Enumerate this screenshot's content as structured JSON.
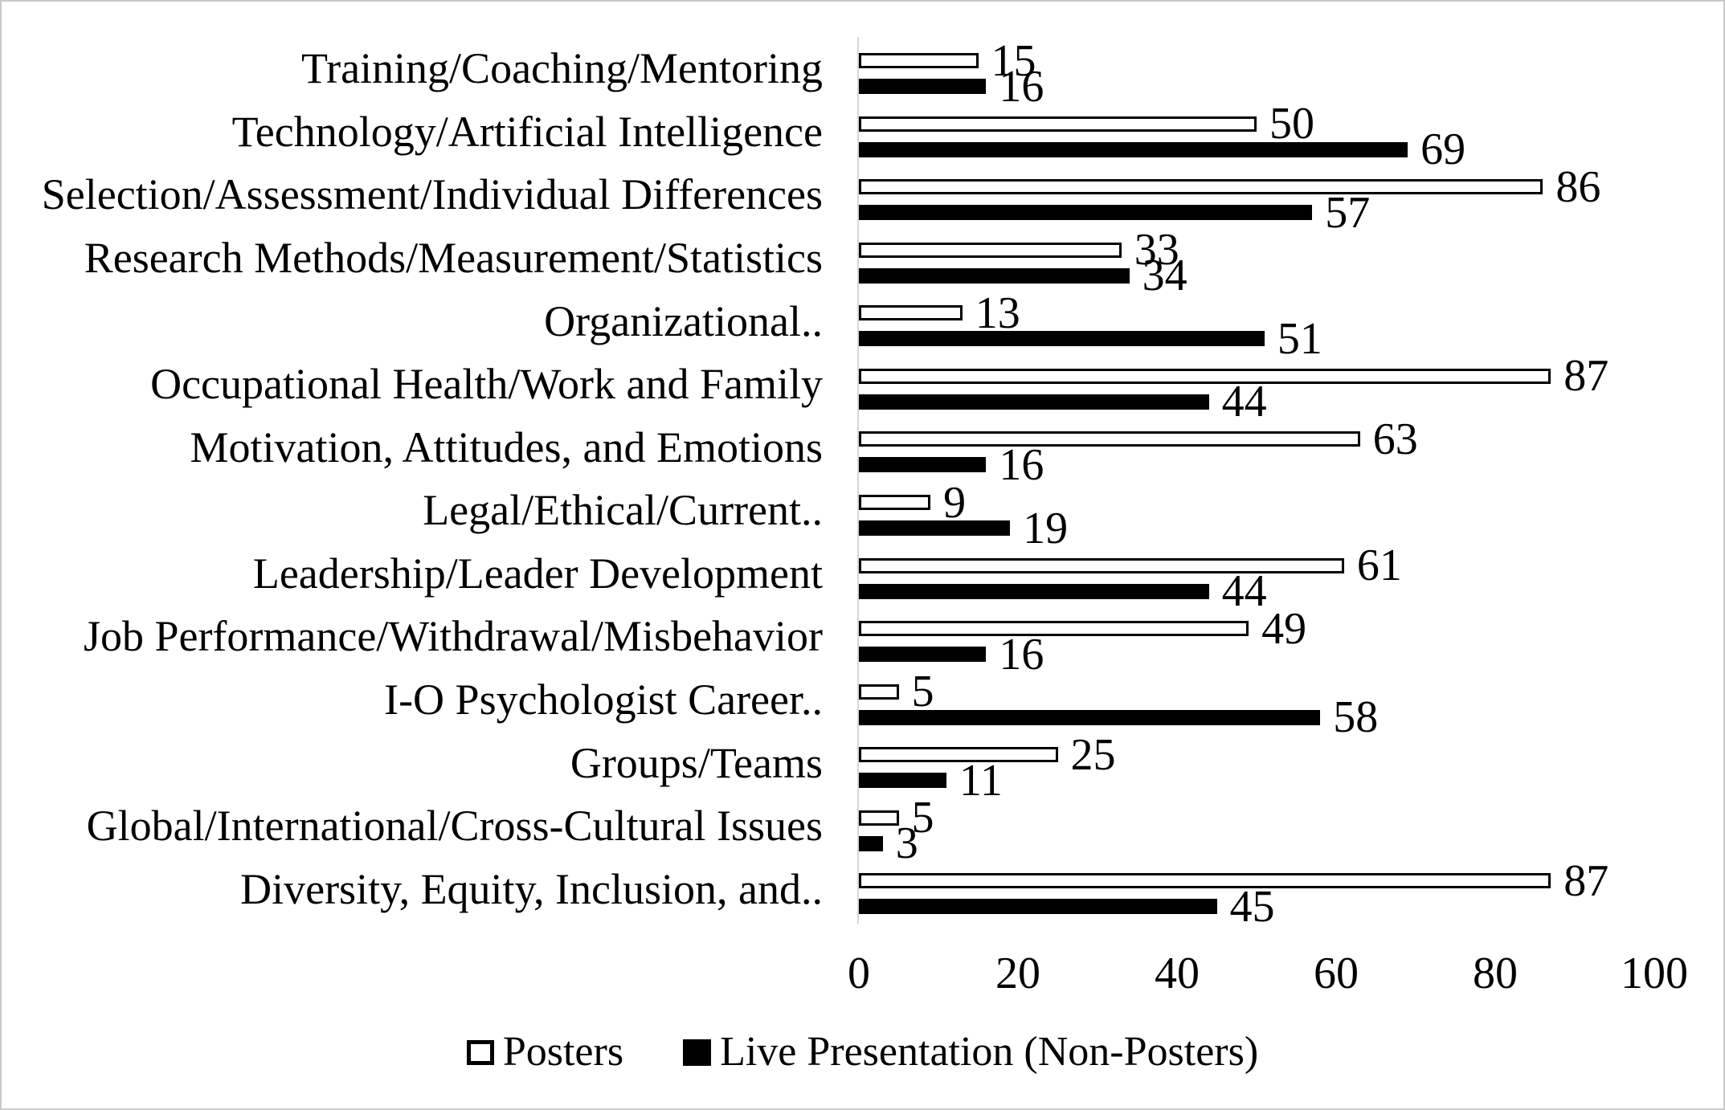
{
  "chart_data": {
    "type": "bar",
    "orientation": "horizontal",
    "title": "",
    "xlabel": "",
    "ylabel": "",
    "xlim": [
      0,
      100
    ],
    "x_ticks": [
      0,
      20,
      40,
      60,
      80,
      100
    ],
    "grid": false,
    "legend_position": "bottom",
    "categories": [
      "Training/Coaching/Mentoring",
      "Technology/Artificial Intelligence",
      "Selection/Assessment/Individual Differences",
      "Research Methods/Measurement/Statistics",
      "Organizational..",
      "Occupational Health/Work and Family",
      "Motivation, Attitudes, and Emotions",
      "Legal/Ethical/Current..",
      "Leadership/Leader Development",
      "Job Performance/Withdrawal/Misbehavior",
      "I-O Psychologist Career..",
      "Groups/Teams",
      "Global/International/Cross-Cultural Issues",
      "Diversity, Equity, Inclusion, and.."
    ],
    "series": [
      {
        "name": "Posters",
        "fill": "#ffffff",
        "border": "#000000",
        "values": [
          15,
          50,
          86,
          33,
          13,
          87,
          63,
          9,
          61,
          49,
          5,
          25,
          5,
          87
        ]
      },
      {
        "name": "Live Presentation (Non-Posters)",
        "fill": "#000000",
        "border": "#000000",
        "values": [
          16,
          69,
          57,
          34,
          51,
          44,
          16,
          19,
          44,
          16,
          58,
          11,
          3,
          45
        ]
      }
    ]
  },
  "colors": {
    "background": "#ffffff",
    "text": "#000000",
    "axis_line": "#d6d6d6",
    "frame_border": "#c9c9c9",
    "posters_fill": "#ffffff",
    "live_fill": "#000000"
  }
}
